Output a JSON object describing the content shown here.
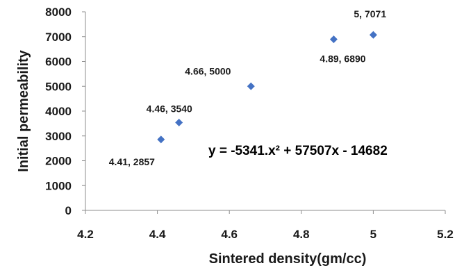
{
  "chart_data": {
    "type": "scatter",
    "xlabel": "Sintered density(gm/cc)",
    "ylabel": "Initial permeability",
    "xlim": [
      4.2,
      5.2
    ],
    "ylim": [
      0,
      8000
    ],
    "x_ticks": [
      "4.2",
      "4.4",
      "4.6",
      "4.8",
      "5",
      "5.2"
    ],
    "y_ticks": [
      "0",
      "1000",
      "2000",
      "3000",
      "4000",
      "5000",
      "6000",
      "7000",
      "8000"
    ],
    "grid": "none",
    "legend": "none",
    "marker": "diamond",
    "marker_color": "#4472C4",
    "points": [
      {
        "x": 4.41,
        "y": 2857,
        "label": "4.41, 2857"
      },
      {
        "x": 4.46,
        "y": 3540,
        "label": "4.46, 3540"
      },
      {
        "x": 4.66,
        "y": 5000,
        "label": "4.66, 5000"
      },
      {
        "x": 4.89,
        "y": 6890,
        "label": "4.89, 6890"
      },
      {
        "x": 5,
        "y": 7071,
        "label": "5, 7071"
      }
    ],
    "trendline": {
      "type": "polynomial",
      "order": 2,
      "coefficients": [
        -5341,
        57507,
        -14682
      ],
      "x_range": [
        4.41,
        5
      ],
      "equation_text": "y = -5341.x² + 57507x - 14682"
    }
  }
}
